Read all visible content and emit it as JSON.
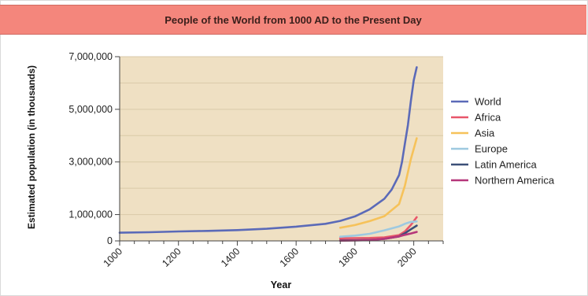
{
  "chart_data": {
    "type": "line",
    "title": "People of the World from 1000 AD to the Present Day",
    "xlabel": "Year",
    "ylabel": "Estimated population (in thousands)",
    "xlim": [
      1000,
      2100
    ],
    "ylim": [
      0,
      7000000
    ],
    "x_ticks": [
      "1000",
      "1200",
      "1400",
      "1600",
      "1800",
      "2000"
    ],
    "y_ticks": [
      {
        "value": 0,
        "label": "0"
      },
      {
        "value": 1000000,
        "label": "1,000,000"
      },
      {
        "value": 3000000,
        "label": "3,000,000"
      },
      {
        "value": 5000000,
        "label": "5,000,000"
      },
      {
        "value": 7000000,
        "label": "7,000,000"
      }
    ],
    "grid": true,
    "legend_position": "right",
    "plot_background": "#efe0c3",
    "series": [
      {
        "name": "World",
        "color": "#5b6ab8",
        "points": [
          [
            1000,
            310000
          ],
          [
            1100,
            330000
          ],
          [
            1200,
            360000
          ],
          [
            1300,
            380000
          ],
          [
            1400,
            410000
          ],
          [
            1500,
            460000
          ],
          [
            1600,
            540000
          ],
          [
            1700,
            650000
          ],
          [
            1750,
            760000
          ],
          [
            1800,
            930000
          ],
          [
            1850,
            1200000
          ],
          [
            1900,
            1600000
          ],
          [
            1925,
            1950000
          ],
          [
            1950,
            2500000
          ],
          [
            1960,
            3000000
          ],
          [
            1970,
            3700000
          ],
          [
            1980,
            4400000
          ],
          [
            1990,
            5300000
          ],
          [
            2000,
            6100000
          ],
          [
            2010,
            6600000
          ]
        ]
      },
      {
        "name": "Africa",
        "color": "#e8566a",
        "points": [
          [
            1750,
            100000
          ],
          [
            1800,
            105000
          ],
          [
            1850,
            110000
          ],
          [
            1900,
            135000
          ],
          [
            1950,
            220000
          ],
          [
            1970,
            360000
          ],
          [
            1990,
            600000
          ],
          [
            2010,
            900000
          ]
        ]
      },
      {
        "name": "Asia",
        "color": "#f6c25a",
        "points": [
          [
            1750,
            500000
          ],
          [
            1800,
            600000
          ],
          [
            1850,
            750000
          ],
          [
            1900,
            940000
          ],
          [
            1950,
            1400000
          ],
          [
            1970,
            2100000
          ],
          [
            1990,
            3100000
          ],
          [
            2010,
            3900000
          ]
        ]
      },
      {
        "name": "Europe",
        "color": "#9ec9e0",
        "points": [
          [
            1750,
            160000
          ],
          [
            1800,
            200000
          ],
          [
            1850,
            270000
          ],
          [
            1900,
            400000
          ],
          [
            1950,
            550000
          ],
          [
            1970,
            650000
          ],
          [
            1990,
            720000
          ],
          [
            2010,
            740000
          ]
        ]
      },
      {
        "name": "Latin America",
        "color": "#3b4f78",
        "points": [
          [
            1750,
            20000
          ],
          [
            1800,
            25000
          ],
          [
            1850,
            35000
          ],
          [
            1900,
            75000
          ],
          [
            1950,
            170000
          ],
          [
            1970,
            290000
          ],
          [
            1990,
            440000
          ],
          [
            2010,
            580000
          ]
        ]
      },
      {
        "name": "Northern America",
        "color": "#b5367a",
        "points": [
          [
            1750,
            10000
          ],
          [
            1800,
            15000
          ],
          [
            1850,
            30000
          ],
          [
            1900,
            82000
          ],
          [
            1950,
            170000
          ],
          [
            1970,
            230000
          ],
          [
            1990,
            280000
          ],
          [
            2010,
            340000
          ]
        ]
      }
    ]
  }
}
